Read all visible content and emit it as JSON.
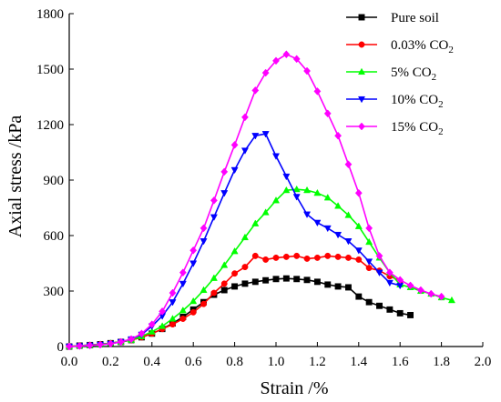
{
  "chart_data": {
    "type": "line",
    "xlabel": "Strain  /%",
    "ylabel": "Axial stress  /kPa",
    "xlim": [
      0.0,
      2.0
    ],
    "ylim": [
      0,
      1800
    ],
    "xticks": [
      "0.0",
      "0.2",
      "0.4",
      "0.6",
      "0.8",
      "1.0",
      "1.2",
      "1.4",
      "1.6",
      "1.8",
      "2.0"
    ],
    "yticks": [
      "0",
      "300",
      "600",
      "900",
      "1200",
      "1500",
      "1800"
    ],
    "grid": false,
    "legend_position": "top-right",
    "series": [
      {
        "name": "Pure soil",
        "legend_main": "Pure soil",
        "legend_sub": "",
        "color": "#000000",
        "marker": "square",
        "x": [
          0.0,
          0.05,
          0.1,
          0.15,
          0.2,
          0.25,
          0.3,
          0.35,
          0.4,
          0.45,
          0.5,
          0.55,
          0.6,
          0.65,
          0.7,
          0.75,
          0.8,
          0.85,
          0.9,
          0.95,
          1.0,
          1.05,
          1.1,
          1.15,
          1.2,
          1.25,
          1.3,
          1.35,
          1.4,
          1.45,
          1.5,
          1.55,
          1.6,
          1.65
        ],
        "y": [
          0,
          5,
          8,
          12,
          18,
          25,
          35,
          50,
          70,
          95,
          125,
          160,
          200,
          240,
          280,
          305,
          325,
          340,
          350,
          358,
          365,
          368,
          365,
          360,
          350,
          335,
          325,
          320,
          270,
          240,
          220,
          200,
          180,
          170
        ]
      },
      {
        "name": "0.03% CO2",
        "legend_main": "0.03% CO",
        "legend_sub": "2",
        "color": "#ff0000",
        "marker": "circle",
        "x": [
          0.0,
          0.05,
          0.1,
          0.15,
          0.2,
          0.25,
          0.3,
          0.35,
          0.4,
          0.45,
          0.5,
          0.55,
          0.6,
          0.65,
          0.7,
          0.75,
          0.8,
          0.85,
          0.9,
          0.95,
          1.0,
          1.05,
          1.1,
          1.15,
          1.2,
          1.25,
          1.3,
          1.35,
          1.4,
          1.45,
          1.5,
          1.55,
          1.6
        ],
        "y": [
          0,
          5,
          8,
          12,
          18,
          25,
          35,
          50,
          70,
          95,
          120,
          150,
          185,
          230,
          290,
          340,
          395,
          430,
          490,
          470,
          480,
          485,
          490,
          475,
          480,
          490,
          485,
          480,
          470,
          425,
          410,
          380,
          355
        ]
      },
      {
        "name": "5% CO2",
        "legend_main": "5% CO",
        "legend_sub": "2",
        "color": "#00ff00",
        "marker": "triangle-up",
        "x": [
          0.0,
          0.05,
          0.1,
          0.15,
          0.2,
          0.25,
          0.3,
          0.35,
          0.4,
          0.45,
          0.5,
          0.55,
          0.6,
          0.65,
          0.7,
          0.75,
          0.8,
          0.85,
          0.9,
          0.95,
          1.0,
          1.05,
          1.1,
          1.15,
          1.2,
          1.25,
          1.3,
          1.35,
          1.4,
          1.45,
          1.5,
          1.55,
          1.6,
          1.65,
          1.7,
          1.75,
          1.8,
          1.85
        ],
        "y": [
          0,
          5,
          8,
          12,
          18,
          25,
          35,
          55,
          80,
          110,
          150,
          195,
          245,
          305,
          370,
          440,
          515,
          590,
          665,
          725,
          790,
          845,
          850,
          845,
          830,
          805,
          760,
          710,
          650,
          565,
          480,
          400,
          335,
          320,
          300,
          285,
          265,
          250
        ]
      },
      {
        "name": "10% CO2",
        "legend_main": "10% CO",
        "legend_sub": "2",
        "color": "#0000ff",
        "marker": "triangle-down",
        "x": [
          0.0,
          0.05,
          0.1,
          0.15,
          0.2,
          0.25,
          0.3,
          0.35,
          0.4,
          0.45,
          0.5,
          0.55,
          0.6,
          0.65,
          0.7,
          0.75,
          0.8,
          0.85,
          0.9,
          0.95,
          1.0,
          1.05,
          1.1,
          1.15,
          1.2,
          1.25,
          1.3,
          1.35,
          1.4,
          1.45,
          1.5,
          1.55,
          1.6
        ],
        "y": [
          0,
          3,
          6,
          10,
          15,
          25,
          40,
          65,
          110,
          165,
          240,
          340,
          450,
          570,
          700,
          830,
          955,
          1060,
          1140,
          1150,
          1030,
          920,
          810,
          715,
          670,
          640,
          605,
          570,
          520,
          460,
          400,
          345,
          330
        ]
      },
      {
        "name": "15% CO2",
        "legend_main": "15% CO",
        "legend_sub": "2",
        "color": "#ff00ff",
        "marker": "diamond",
        "x": [
          0.0,
          0.05,
          0.1,
          0.15,
          0.2,
          0.25,
          0.3,
          0.35,
          0.4,
          0.45,
          0.5,
          0.55,
          0.6,
          0.65,
          0.7,
          0.75,
          0.8,
          0.85,
          0.9,
          0.95,
          1.0,
          1.05,
          1.1,
          1.15,
          1.2,
          1.25,
          1.3,
          1.35,
          1.4,
          1.45,
          1.5,
          1.55,
          1.6,
          1.65,
          1.7,
          1.75,
          1.8
        ],
        "y": [
          0,
          3,
          6,
          10,
          15,
          25,
          40,
          70,
          120,
          190,
          290,
          400,
          520,
          640,
          790,
          945,
          1090,
          1240,
          1385,
          1480,
          1545,
          1580,
          1555,
          1490,
          1380,
          1260,
          1140,
          985,
          830,
          640,
          490,
          400,
          360,
          330,
          305,
          285,
          270
        ]
      }
    ]
  }
}
